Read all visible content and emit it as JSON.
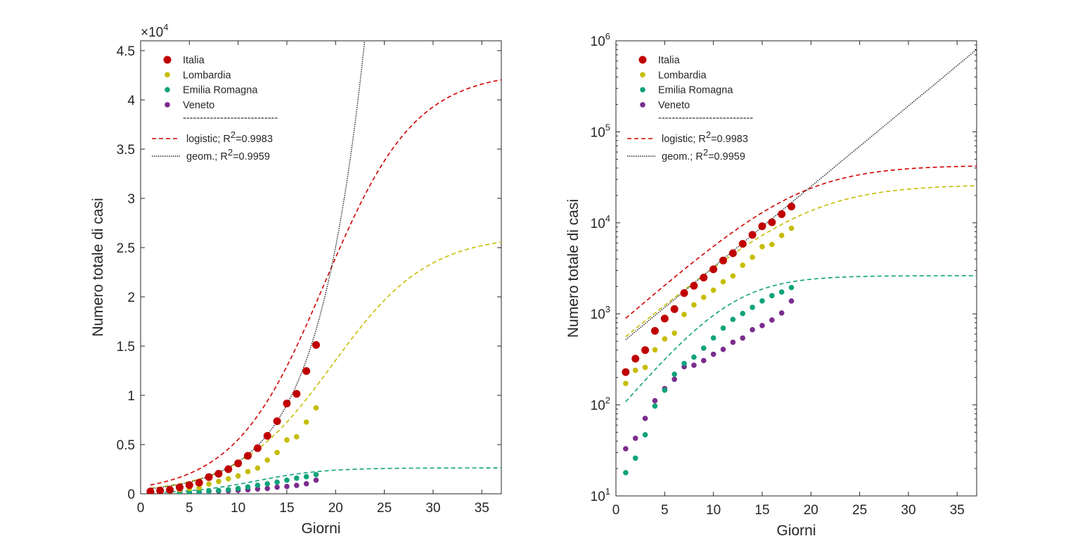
{
  "chart_data": [
    {
      "type": "scatter",
      "xlabel": "Giorni",
      "ylabel": "Numero totale di casi",
      "xlim": [
        0,
        37
      ],
      "ylim": [
        0,
        46000
      ],
      "yscale": "linear",
      "y_exponent_label": "×10",
      "y_exponent_sup": "4",
      "x_ticks": [
        0,
        5,
        10,
        15,
        20,
        25,
        30,
        35
      ],
      "x_tick_labels": [
        "0",
        "5",
        "10",
        "15",
        "20",
        "25",
        "30",
        "35"
      ],
      "y_ticks": [
        0,
        5000,
        10000,
        15000,
        20000,
        25000,
        30000,
        35000,
        40000,
        45000
      ],
      "y_tick_labels": [
        "0",
        "0.5",
        "1",
        "1.5",
        "2",
        "2.5",
        "3",
        "3.5",
        "4",
        "4.5"
      ],
      "grid": false,
      "legend_position": "top-left"
    },
    {
      "type": "scatter",
      "xlabel": "Giorni",
      "ylabel": "Numero totale di casi",
      "xlim": [
        0,
        37
      ],
      "ylim": [
        10,
        1000000
      ],
      "yscale": "log",
      "x_ticks": [
        0,
        5,
        10,
        15,
        20,
        25,
        30,
        35
      ],
      "x_tick_labels": [
        "0",
        "5",
        "10",
        "15",
        "20",
        "25",
        "30",
        "35"
      ],
      "y_ticks": [
        10,
        100,
        1000,
        10000,
        100000,
        1000000
      ],
      "y_tick_base": "10",
      "y_tick_exponents": [
        "1",
        "2",
        "3",
        "4",
        "5",
        "6"
      ],
      "grid": false,
      "legend_position": "top-left"
    }
  ],
  "series": [
    {
      "name": "Italia",
      "color": "#c00000",
      "marker_size": 5.5,
      "x": [
        1,
        2,
        3,
        4,
        5,
        6,
        7,
        8,
        9,
        10,
        11,
        12,
        13,
        14,
        15,
        16,
        17,
        18
      ],
      "y": [
        229,
        322,
        400,
        650,
        888,
        1128,
        1694,
        2036,
        2502,
        3089,
        3858,
        4636,
        5883,
        7375,
        9172,
        10149,
        12462,
        15113
      ]
    },
    {
      "name": "Lombardia",
      "color": "#c5bd00",
      "marker_size": 3.8,
      "x": [
        1,
        2,
        3,
        4,
        5,
        6,
        7,
        8,
        9,
        10,
        11,
        12,
        13,
        14,
        15,
        16,
        17,
        18
      ],
      "y": [
        172,
        240,
        258,
        403,
        531,
        615,
        984,
        1254,
        1520,
        1820,
        2251,
        2612,
        3420,
        4189,
        5469,
        5791,
        7280,
        8725
      ]
    },
    {
      "name": "Emilia Romagna",
      "color": "#0fa37a",
      "marker_size": 3.8,
      "x": [
        1,
        2,
        3,
        4,
        5,
        6,
        7,
        8,
        9,
        10,
        11,
        12,
        13,
        14,
        15,
        16,
        17,
        18
      ],
      "y": [
        18,
        26,
        47,
        97,
        145,
        217,
        285,
        335,
        420,
        544,
        698,
        870,
        1010,
        1180,
        1386,
        1586,
        1739,
        1947
      ]
    },
    {
      "name": "Veneto",
      "color": "#7b2d8e",
      "marker_size": 3.8,
      "x": [
        1,
        2,
        3,
        4,
        5,
        6,
        7,
        8,
        9,
        10,
        11,
        12,
        13,
        14,
        15,
        16,
        17,
        18
      ],
      "y": [
        33,
        43,
        71,
        111,
        151,
        191,
        263,
        273,
        307,
        360,
        407,
        488,
        543,
        670,
        744,
        856,
        1023,
        1384
      ]
    }
  ],
  "fits": {
    "logistic": [
      {
        "color": "#d00000",
        "K": 42900,
        "r": 0.2151,
        "t0": 18.9
      },
      {
        "color": "#c5bd00",
        "K": 26300,
        "r": 0.2045,
        "t0": 19.7
      },
      {
        "color": "#0fa37a",
        "K": 2630,
        "r": 0.289,
        "t0": 11.9
      }
    ],
    "geometric": {
      "color": "#222222",
      "a": 425,
      "b": 1.2261,
      "x_start": 1
    }
  },
  "legend": {
    "items": [
      {
        "label": "Italia",
        "kind": "marker-large",
        "color": "#c00000"
      },
      {
        "label": "Lombardia",
        "kind": "marker",
        "color": "#c5bd00"
      },
      {
        "label": "Emilia Romagna",
        "kind": "marker",
        "color": "#0fa37a"
      },
      {
        "label": "Veneto",
        "kind": "marker",
        "color": "#7b2d8e"
      }
    ],
    "separator": "----------------------------",
    "fit_items": [
      {
        "label": "logistic;  R",
        "sup": "2",
        "tail": "=0.9983",
        "kind": "dashed",
        "color": "#d00000"
      },
      {
        "label": "geom.;   R",
        "sup": "2",
        "tail": "=0.9959",
        "kind": "dotted",
        "color": "#222222"
      }
    ]
  }
}
